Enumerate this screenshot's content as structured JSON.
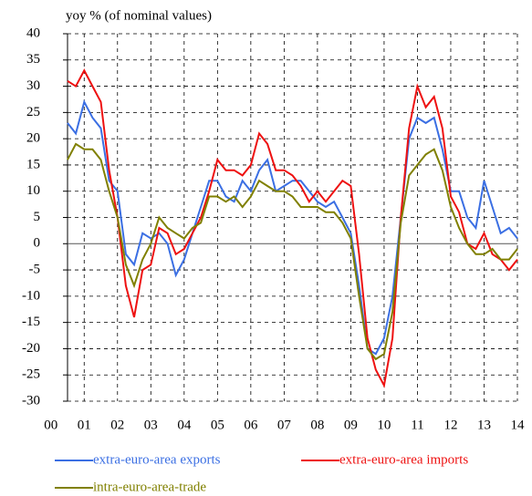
{
  "chart_data": {
    "type": "line",
    "ylabel": "yoy % (of nominal values)",
    "x": [
      0.5,
      0.75,
      1,
      1.25,
      1.5,
      1.75,
      2,
      2.25,
      2.5,
      2.75,
      3,
      3.25,
      3.5,
      3.75,
      4,
      4.25,
      4.5,
      4.75,
      5,
      5.25,
      5.5,
      5.75,
      6,
      6.25,
      6.5,
      6.75,
      7,
      7.25,
      7.5,
      7.75,
      8,
      8.25,
      8.5,
      8.75,
      9,
      9.25,
      9.5,
      9.75,
      10,
      10.25,
      10.5,
      10.75,
      11,
      11.25,
      11.5,
      11.75,
      12,
      12.25,
      12.5,
      12.75,
      13,
      13.25,
      13.5,
      13.75,
      14
    ],
    "series": [
      {
        "name": "extra-euro-area exports",
        "color": "#3b6fe3",
        "values": [
          23,
          21,
          27,
          24,
          22,
          12,
          10,
          -2,
          -4,
          2,
          1,
          2,
          0,
          -6,
          -3,
          2,
          7,
          12,
          12,
          9,
          8,
          12,
          10,
          14,
          16,
          10,
          11,
          12,
          12,
          10,
          8,
          7,
          8,
          5,
          2,
          -8,
          -20,
          -21,
          -18,
          -10,
          5,
          20,
          24,
          23,
          24,
          18,
          10,
          10,
          5,
          3,
          12,
          7,
          2,
          3,
          1
        ]
      },
      {
        "name": "extra-euro-area imports",
        "color": "#ee1111",
        "values": [
          31,
          30,
          33,
          30,
          27,
          14,
          5,
          -8,
          -14,
          -5,
          -4,
          3,
          2,
          -2,
          -1,
          2,
          5,
          10,
          16,
          14,
          14,
          13,
          15,
          21,
          19,
          14,
          14,
          13,
          11,
          8,
          10,
          8,
          10,
          12,
          11,
          -2,
          -18,
          -24,
          -27,
          -18,
          5,
          22,
          30,
          26,
          28,
          22,
          9,
          6,
          0,
          -1,
          2,
          -2,
          -3,
          -5,
          -3
        ]
      },
      {
        "name": "intra-euro-area-trade",
        "color": "#808000",
        "values": [
          16,
          19,
          18,
          18,
          16,
          10,
          5,
          -4,
          -8,
          -3,
          0,
          5,
          3,
          2,
          1,
          3,
          4,
          9,
          9,
          8,
          9,
          7,
          9,
          12,
          11,
          10,
          10,
          9,
          7,
          7,
          7,
          6,
          6,
          4,
          1,
          -10,
          -20,
          -22,
          -21,
          -13,
          4,
          13,
          15,
          17,
          18,
          14,
          7,
          3,
          0,
          -2,
          -2,
          -1,
          -3,
          -3,
          -1
        ]
      }
    ],
    "xlim": [
      0.5,
      14
    ],
    "xticks": [
      {
        "value": 0,
        "label": "00"
      },
      {
        "value": 1,
        "label": "01"
      },
      {
        "value": 2,
        "label": "02"
      },
      {
        "value": 3,
        "label": "03"
      },
      {
        "value": 4,
        "label": "04"
      },
      {
        "value": 5,
        "label": "05"
      },
      {
        "value": 6,
        "label": "06"
      },
      {
        "value": 7,
        "label": "07"
      },
      {
        "value": 8,
        "label": "08"
      },
      {
        "value": 9,
        "label": "09"
      },
      {
        "value": 10,
        "label": "10"
      },
      {
        "value": 11,
        "label": "11"
      },
      {
        "value": 12,
        "label": "12"
      },
      {
        "value": 13,
        "label": "13"
      },
      {
        "value": 14,
        "label": "14"
      }
    ],
    "ylim": [
      -30,
      40
    ],
    "yticks": [
      -30,
      -25,
      -20,
      -15,
      -10,
      -5,
      0,
      5,
      10,
      15,
      20,
      25,
      30,
      35,
      40
    ],
    "grid": true
  }
}
